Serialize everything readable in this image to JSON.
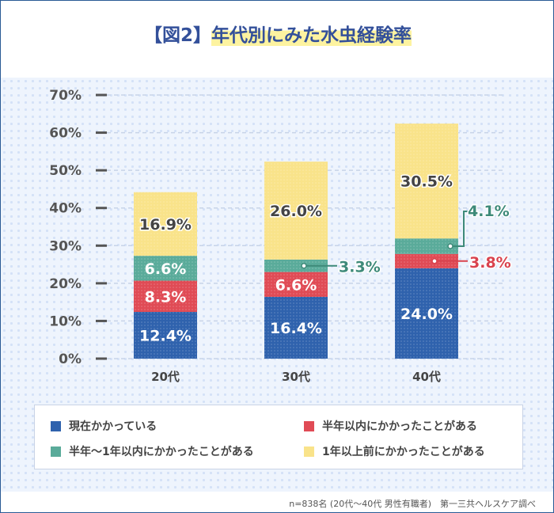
{
  "chart_data": {
    "type": "bar",
    "stacked": true,
    "title_prefix": "【図2】",
    "title": "年代別にみた水虫経験率",
    "categories": [
      "20代",
      "30代",
      "40代"
    ],
    "yticks": [
      "0%",
      "10%",
      "20%",
      "30%",
      "40%",
      "50%",
      "60%",
      "70%"
    ],
    "ylim": [
      0,
      70
    ],
    "series": [
      {
        "name": "現在かかっている",
        "color": "#2f62ad",
        "values": [
          12.4,
          16.4,
          24.0
        ],
        "labels": [
          "12.4%",
          "16.4%",
          "24.0%"
        ]
      },
      {
        "name": "半年以内にかかったことがある",
        "color": "#e04b55",
        "values": [
          8.3,
          6.6,
          3.8
        ],
        "labels": [
          "8.3%",
          "6.6%",
          "3.8%"
        ]
      },
      {
        "name": "半年～1年以内にかかったことがある",
        "color": "#5aab9a",
        "values": [
          6.6,
          3.3,
          4.1
        ],
        "labels": [
          "6.6%",
          "3.3%",
          "4.1%"
        ]
      },
      {
        "name": "1年以上前にかかったことがある",
        "color": "#f9e38a",
        "values": [
          16.9,
          26.0,
          30.5
        ],
        "labels": [
          "16.9%",
          "26.0%",
          "30.5%"
        ]
      }
    ],
    "note": "n=838名 (20代～40代 男性有職者)　第一三共ヘルスケア調べ"
  }
}
